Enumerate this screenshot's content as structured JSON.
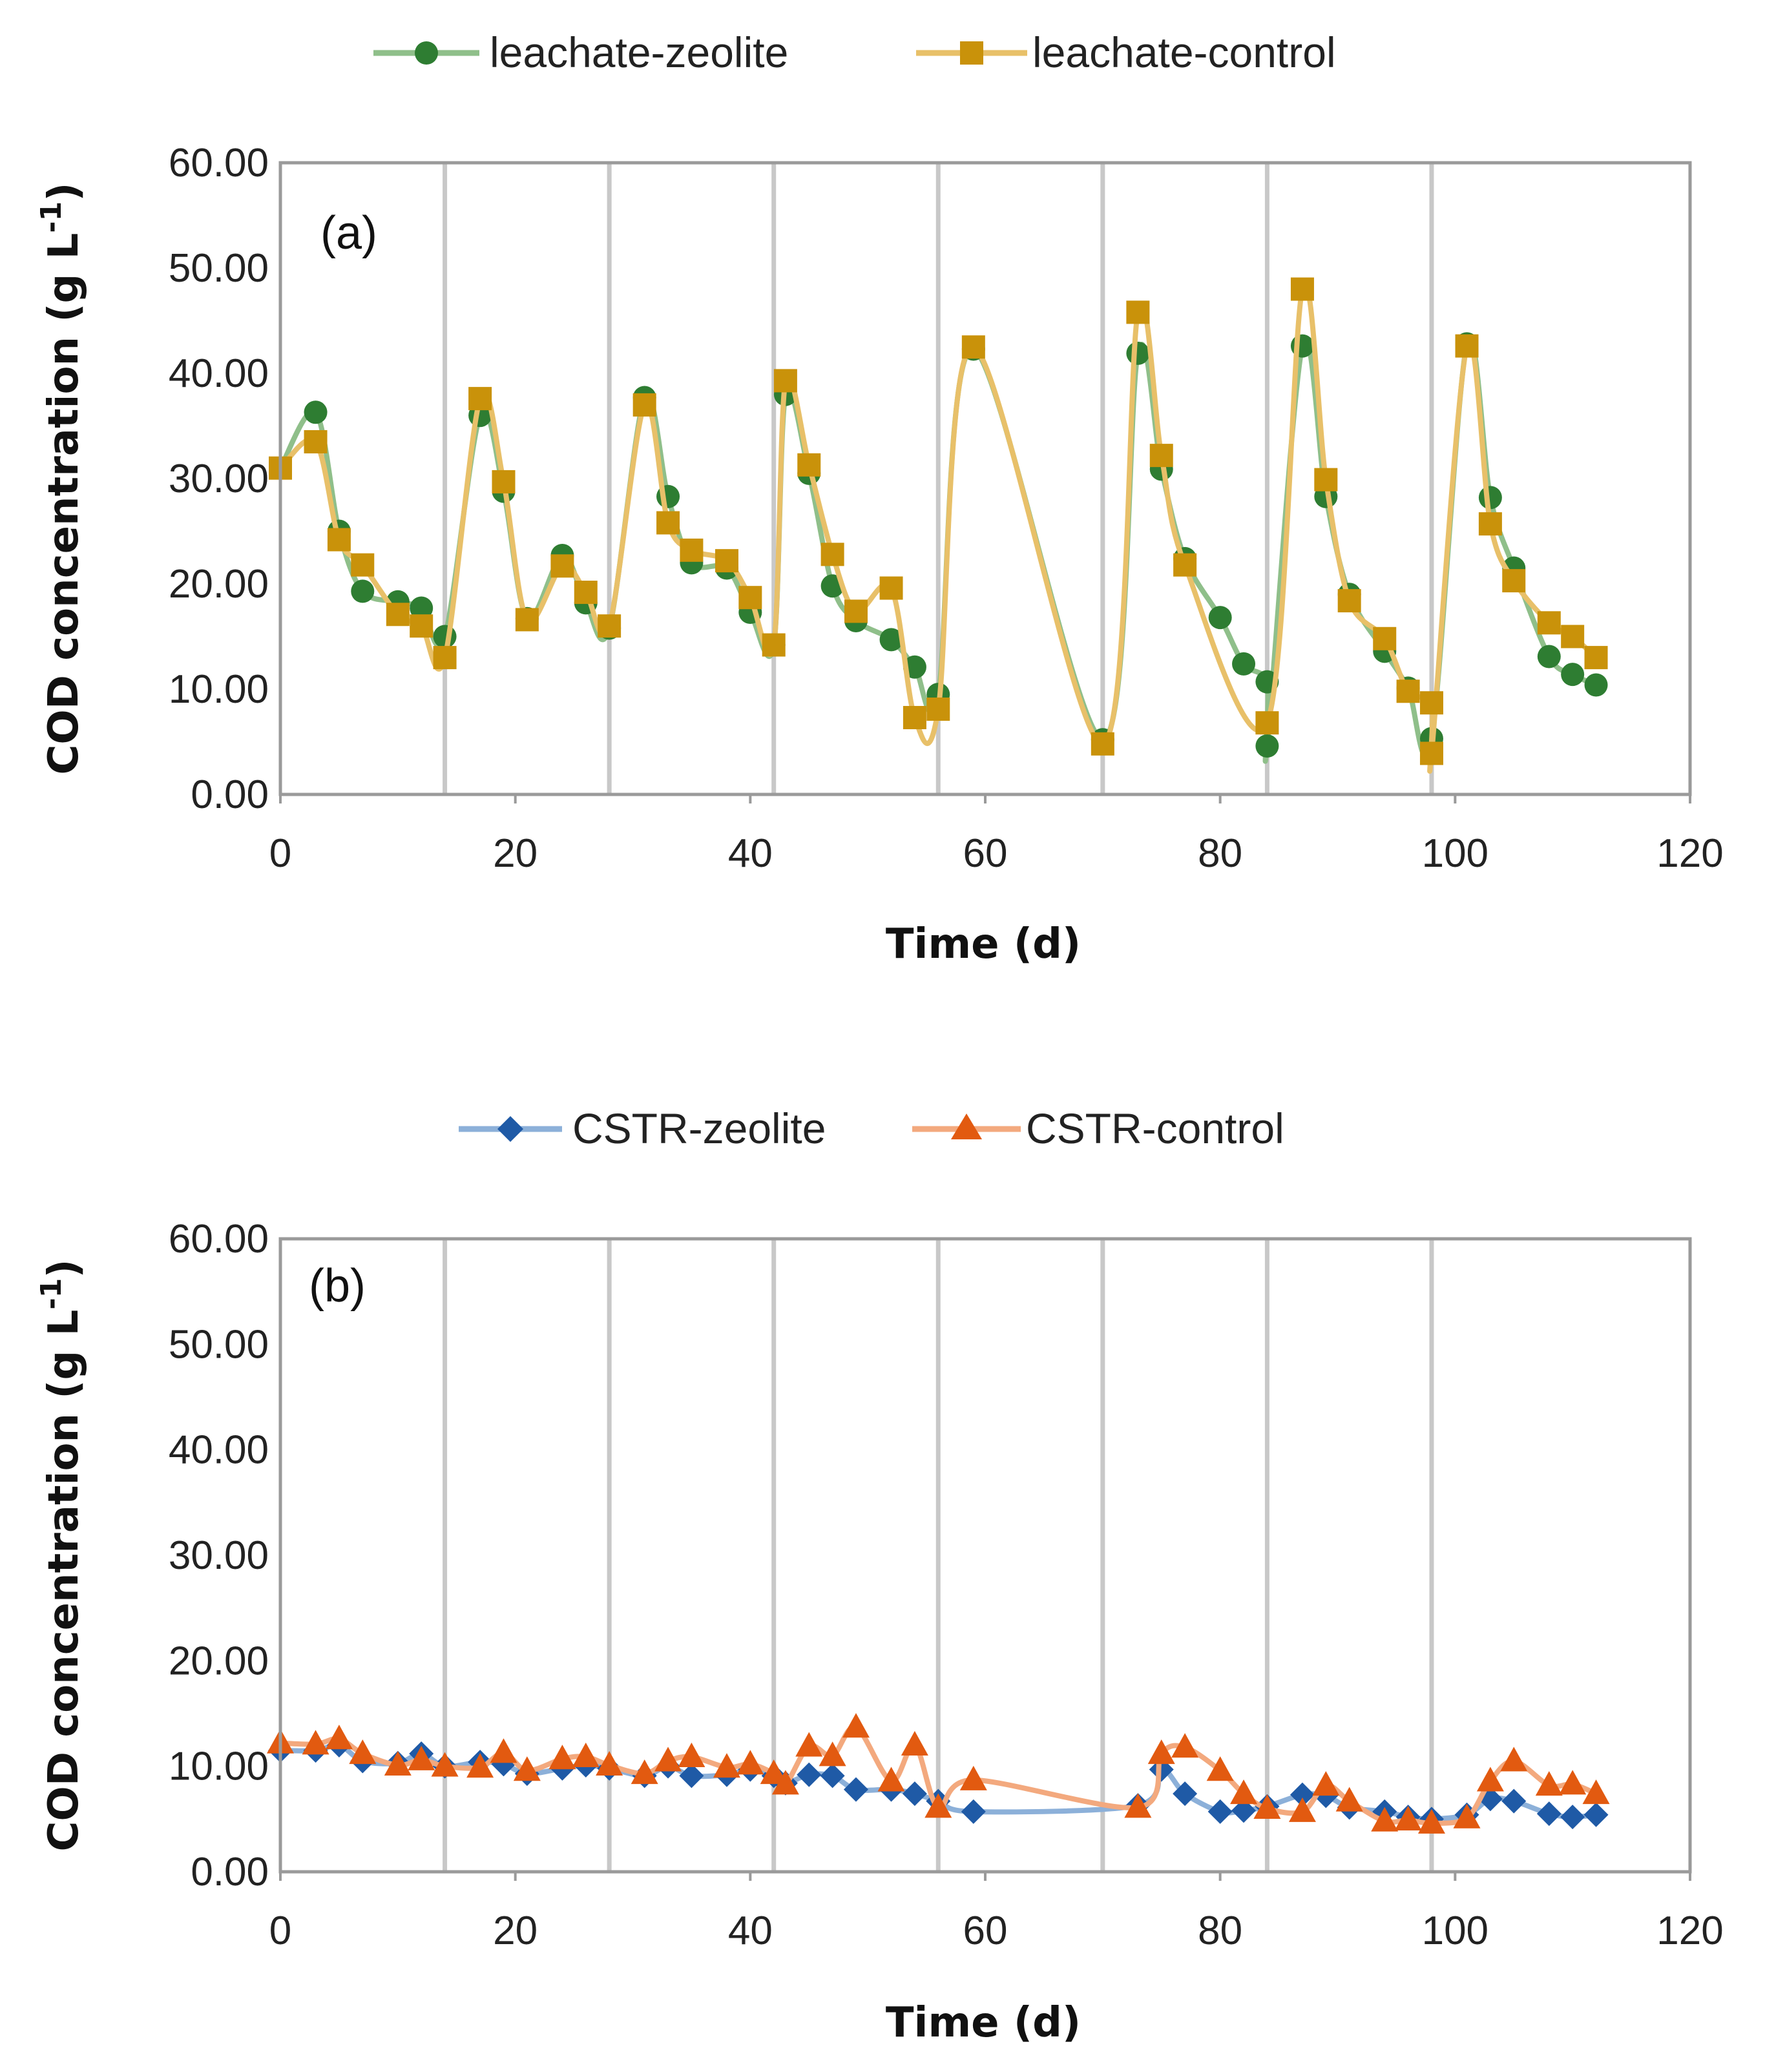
{
  "colors": {
    "leachate_zeolite": "#2e7d32",
    "leachate_zeolite_line": "#8fbf8a",
    "leachate_control": "#c9920a",
    "leachate_control_line": "#e8c069",
    "cstr_zeolite": "#1f5aa6",
    "cstr_zeolite_line": "#8cb0d9",
    "cstr_control": "#e25a10",
    "cstr_control_line": "#f3a97e",
    "cycle_line": "#c8c8c8",
    "frame": "#9a9a9a"
  },
  "chart_data": [
    {
      "type": "line",
      "panel_label": "(a)",
      "xlabel": "Time (d)",
      "ylabel": "COD concentration (g L",
      "ylabel_sup": "-1",
      "ylabel_close": ")",
      "xlim": [
        0,
        120
      ],
      "ylim": [
        0,
        60
      ],
      "xticks": [
        0,
        20,
        40,
        60,
        80,
        100,
        120
      ],
      "xtick_labels": [
        "0",
        "20",
        "40",
        "60",
        "80",
        "100",
        "120"
      ],
      "yticks": [
        0,
        10,
        20,
        30,
        40,
        50,
        60
      ],
      "ytick_labels": [
        "0.00",
        "10.00",
        "20.00",
        "30.00",
        "40.00",
        "50.00",
        "60.00"
      ],
      "cycle_lines": [
        14,
        28,
        42,
        56,
        70,
        84,
        98
      ],
      "legend_position": "top",
      "series": [
        {
          "name": "leachate-zeolite",
          "marker": "circle",
          "color_key": "leachate_zeolite",
          "x": [
            0,
            3,
            5,
            7,
            10,
            12,
            14,
            17,
            19,
            21,
            24,
            26,
            28,
            31,
            33,
            35,
            38,
            40,
            42,
            43,
            45,
            47,
            49,
            52,
            54,
            56,
            59,
            70,
            73,
            75,
            77,
            80,
            82,
            84,
            84,
            87,
            89,
            91,
            94,
            96,
            98,
            101,
            103,
            105,
            108,
            110,
            112
          ],
          "y": [
            31,
            36.3,
            25,
            19.3,
            18.3,
            17.7,
            15,
            36,
            28.8,
            16.7,
            22.7,
            18.2,
            15.8,
            37.7,
            28.3,
            22,
            21.5,
            17.3,
            14.2,
            38,
            30.5,
            19.8,
            16.5,
            14.7,
            12.1,
            9.5,
            42.3,
            5.2,
            41.9,
            30.9,
            22.4,
            16.8,
            12.4,
            10.7,
            4.6,
            42.6,
            28.3,
            19,
            13.6,
            10.1,
            5.3,
            42.8,
            28.2,
            21.5,
            13.1,
            11.4,
            10.4
          ]
        },
        {
          "name": "leachate-control",
          "marker": "square",
          "color_key": "leachate_control",
          "x": [
            0,
            3,
            5,
            7,
            10,
            12,
            14,
            17,
            19,
            21,
            24,
            26,
            28,
            31,
            33,
            35,
            38,
            40,
            42,
            43,
            45,
            47,
            49,
            52,
            54,
            56,
            59,
            70,
            73,
            75,
            77,
            84,
            87,
            89,
            91,
            94,
            96,
            98,
            98,
            101,
            103,
            105,
            108,
            110,
            112
          ],
          "y": [
            31,
            33.5,
            24.2,
            21.8,
            17.1,
            16,
            13,
            37.6,
            29.7,
            16.6,
            21.7,
            19.2,
            16,
            37,
            25.8,
            23.2,
            22.2,
            18.7,
            14.2,
            39.3,
            31.3,
            22.8,
            17.4,
            19.6,
            7.3,
            8.1,
            42.5,
            4.8,
            45.8,
            32.2,
            21.8,
            6.8,
            48,
            29.9,
            18.4,
            14.8,
            9.8,
            8.7,
            3.9,
            42.6,
            25.7,
            20.3,
            16.3,
            15,
            13
          ]
        }
      ]
    },
    {
      "type": "line",
      "panel_label": "(b)",
      "xlabel": "Time (d)",
      "ylabel": "COD concentration (g L",
      "ylabel_sup": "-1",
      "ylabel_close": ")",
      "xlim": [
        0,
        120
      ],
      "ylim": [
        0,
        60
      ],
      "xticks": [
        0,
        20,
        40,
        60,
        80,
        100,
        120
      ],
      "xtick_labels": [
        "0",
        "20",
        "40",
        "60",
        "80",
        "100",
        "120"
      ],
      "yticks": [
        0,
        10,
        20,
        30,
        40,
        50,
        60
      ],
      "ytick_labels": [
        "0.00",
        "10.00",
        "20.00",
        "30.00",
        "40.00",
        "50.00",
        "60.00"
      ],
      "cycle_lines": [
        14,
        28,
        42,
        56,
        70,
        84,
        98
      ],
      "legend_position": "top",
      "series": [
        {
          "name": "CSTR-zeolite",
          "marker": "diamond",
          "color_key": "cstr_zeolite",
          "x": [
            0,
            3,
            5,
            7,
            10,
            12,
            14,
            17,
            19,
            21,
            24,
            26,
            28,
            31,
            33,
            35,
            38,
            40,
            42,
            43,
            45,
            47,
            49,
            52,
            54,
            56,
            59,
            73,
            75,
            77,
            80,
            82,
            84,
            87,
            89,
            91,
            94,
            96,
            98,
            101,
            103,
            105,
            108,
            110,
            112
          ],
          "y": [
            11.5,
            11.5,
            12,
            10.5,
            10.3,
            11.2,
            10,
            10.4,
            10.2,
            9.3,
            9.8,
            10.1,
            9.8,
            9.1,
            10,
            9.1,
            9.2,
            9.7,
            9.1,
            8.4,
            9.2,
            9.1,
            7.8,
            7.8,
            7.4,
            6.7,
            5.7,
            6.3,
            9.7,
            7.4,
            5.7,
            5.8,
            6.2,
            7.3,
            7.2,
            6.1,
            5.7,
            5.2,
            5,
            5.4,
            6.9,
            6.7,
            5.5,
            5.2,
            5.4
          ]
        },
        {
          "name": "CSTR-control",
          "marker": "triangle",
          "color_key": "cstr_control",
          "x": [
            0,
            3,
            5,
            7,
            10,
            12,
            14,
            17,
            19,
            21,
            24,
            26,
            28,
            31,
            33,
            35,
            38,
            40,
            42,
            43,
            45,
            47,
            49,
            52,
            54,
            56,
            59,
            73,
            75,
            77,
            80,
            82,
            84,
            87,
            89,
            91,
            94,
            96,
            98,
            101,
            103,
            105,
            108,
            110,
            112
          ],
          "y": [
            12.2,
            12.1,
            12.6,
            11.2,
            10.1,
            10.6,
            10,
            9.9,
            11.3,
            9.6,
            10.7,
            10.9,
            10.1,
            9.3,
            10.5,
            10.9,
            9.9,
            10.2,
            9.3,
            8.3,
            11.9,
            11,
            13.7,
            8.6,
            12,
            6.1,
            8.7,
            6.1,
            11.2,
            11.8,
            9.6,
            7.4,
            6,
            5.7,
            8.2,
            6.7,
            4.8,
            4.9,
            4.6,
            5.1,
            8.6,
            10.5,
            8.2,
            8.3,
            7.4
          ]
        }
      ]
    }
  ]
}
